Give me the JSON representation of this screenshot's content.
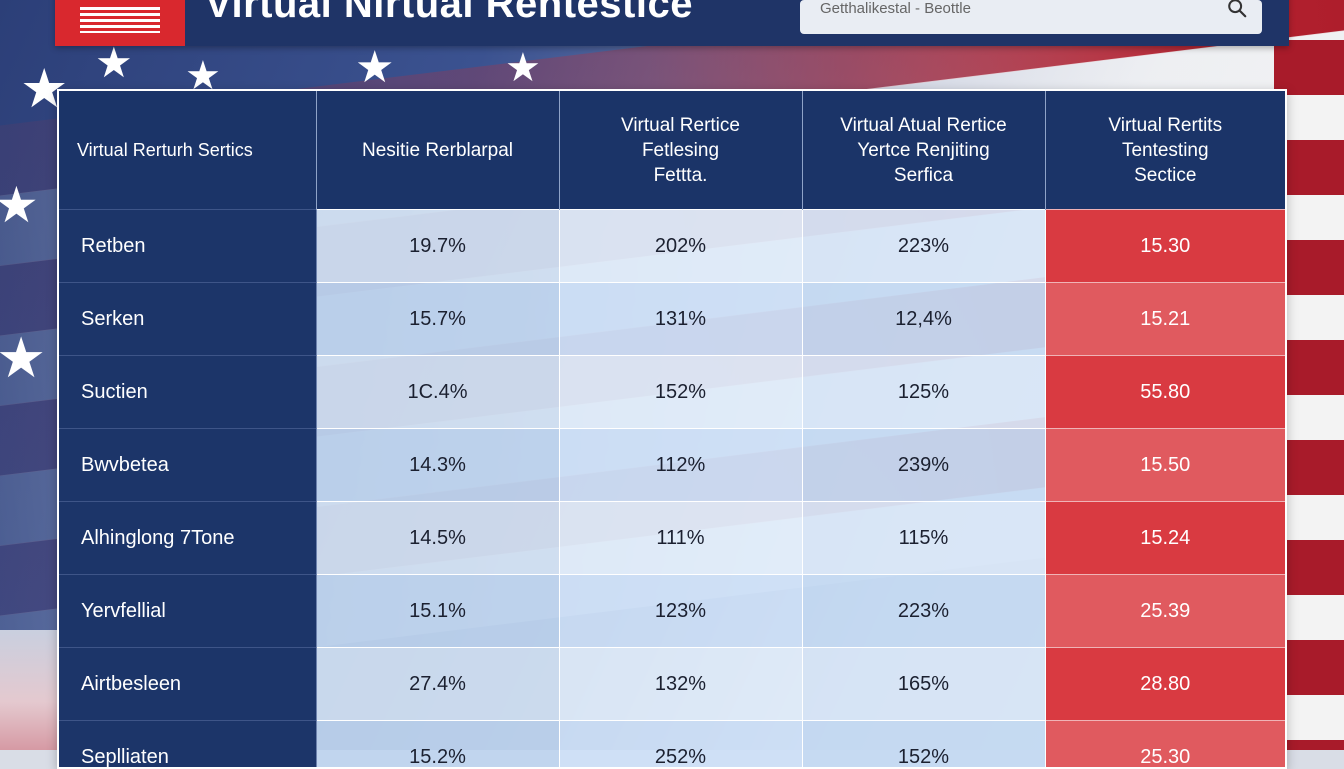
{
  "header": {
    "title": "Virtual Nirtual Rentestice",
    "search_placeholder": "Getthalikestal - Beottle"
  },
  "colors": {
    "navy": "#1b3468",
    "red": "#d93a41",
    "light_blue": "#cfe0f3"
  },
  "icons": {
    "logo": "flag-icon",
    "search": "search-icon"
  },
  "table": {
    "columns": [
      "Virtual Rerturh Sertics",
      "Nesitie Rerblarpal",
      "Virtual Rertice\nFetlesing\nFettta.",
      "Virtual Atual Rertice\nYertce Renjiting\nSerfica",
      "Virtual Rertits\nTentesting\nSectice"
    ],
    "rows": [
      {
        "label": "Retben",
        "v1": "19.7%",
        "v2": "202%",
        "v3": "223%",
        "v4": "15.30"
      },
      {
        "label": "Serken",
        "v1": "15.7%",
        "v2": "131%",
        "v3": "12,4%",
        "v4": "15.21"
      },
      {
        "label": "Suctien",
        "v1": "1C.4%",
        "v2": "152%",
        "v3": "125%",
        "v4": "55.80"
      },
      {
        "label": "Bwvbetea",
        "v1": "14.3%",
        "v2": "112%",
        "v3": "239%",
        "v4": "15.50"
      },
      {
        "label": "Alhinglong 7Tone",
        "v1": "14.5%",
        "v2": "111%",
        "v3": "115%",
        "v4": "15.24"
      },
      {
        "label": "Yervfellial",
        "v1": "15.1%",
        "v2": "123%",
        "v3": "223%",
        "v4": "25.39"
      },
      {
        "label": "Airtbesleen",
        "v1": "27.4%",
        "v2": "132%",
        "v3": "165%",
        "v4": "28.80"
      },
      {
        "label": "Seplliaten",
        "v1": "15.2%",
        "v2": "252%",
        "v3": "152%",
        "v4": "25.30"
      }
    ]
  }
}
